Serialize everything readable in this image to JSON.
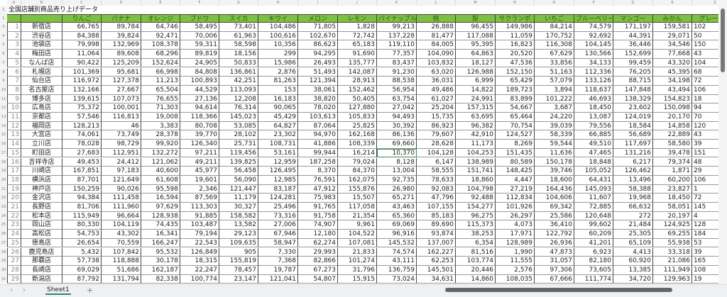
{
  "title": "全国店舗別商品売り上げデータ",
  "column_letters": [
    "A",
    "B",
    "C",
    "D",
    "E",
    "F",
    "G",
    "H",
    "I",
    "J",
    "K",
    "L",
    "M",
    "N",
    "O",
    "P",
    "Q",
    "R",
    "S"
  ],
  "headers": [
    "",
    "",
    "りんご",
    "バナナ",
    "オレンジ",
    "ブドウ",
    "スイカ",
    "キウイ",
    "メロン",
    "レモン",
    "パイナップル",
    "桃",
    "梨",
    "サクランボ",
    "いちご",
    "ブルーベリー",
    "マンゴー",
    "みかん",
    "グレープフ"
  ],
  "rows": [
    [
      "1",
      "新宿店",
      "66,765",
      "89,784",
      "64,746",
      "58,495",
      "73,401",
      "104,486",
      "71,805",
      "1,828",
      "99,213",
      "26,888",
      "96,455",
      "149,986",
      "84,214",
      "74,579",
      "171,197",
      "159,581",
      "102"
    ],
    [
      "2",
      "渋谷店",
      "84,388",
      "39,824",
      "92,471",
      "70,006",
      "61,963",
      "100,616",
      "102,670",
      "72,742",
      "137,228",
      "81,477",
      "117,088",
      "11,059",
      "170,752",
      "92,692",
      "44,391",
      "29,071",
      "50"
    ],
    [
      "3",
      "池袋店",
      "79,998",
      "132,969",
      "108,378",
      "59,311",
      "58,598",
      "10,356",
      "86,623",
      "65,183",
      "119,110",
      "84,005",
      "95,395",
      "16,823",
      "116,308",
      "104,145",
      "36,446",
      "34,546",
      "150"
    ],
    [
      "4",
      "梅田店",
      "11,064",
      "89,608",
      "68,296",
      "89,819",
      "18,156",
      "299",
      "94,295",
      "91,690",
      "77,357",
      "104,090",
      "64,863",
      "20,520",
      "67,629",
      "130,566",
      "152,699",
      "77,668",
      "43"
    ],
    [
      "5",
      "なんば店",
      "90,422",
      "125,209",
      "152,624",
      "24,905",
      "50,833",
      "15,986",
      "26,493",
      "135,777",
      "83,437",
      "103,832",
      "18,127",
      "47,536",
      "33,856",
      "34,133",
      "99,459",
      "43,320",
      "104"
    ],
    [
      "6",
      "札幌店",
      "101,369",
      "95,681",
      "66,998",
      "84,808",
      "136,861",
      "2,876",
      "51,493",
      "142,087",
      "91,230",
      "63,020",
      "126,988",
      "152,150",
      "51,163",
      "112,336",
      "76,205",
      "45,395",
      "68"
    ],
    [
      "7",
      "仙台店",
      "116,972",
      "127,378",
      "11,213",
      "100,893",
      "42,251",
      "81,263",
      "121,394",
      "28,913",
      "88,538",
      "36,031",
      "6,999",
      "65,429",
      "57,079",
      "133,126",
      "88,715",
      "34,198",
      "72"
    ],
    [
      "8",
      "名古屋店",
      "132,166",
      "27,667",
      "65,504",
      "44,529",
      "113,093",
      "153",
      "38,061",
      "152,462",
      "56,954",
      "49,486",
      "14,822",
      "189,723",
      "3,894",
      "118,637",
      "147,848",
      "43,494",
      "106"
    ],
    [
      "9",
      "博多店",
      "139,615",
      "107,073",
      "76,655",
      "27,136",
      "12,208",
      "16,183",
      "38,820",
      "50,405",
      "63,754",
      "61,027",
      "24,991",
      "83,899",
      "101,222",
      "46,693",
      "138,329",
      "154,823",
      "18"
    ],
    [
      "10",
      "広島店",
      "75,372",
      "100,001",
      "71,303",
      "94,614",
      "76,314",
      "90,065",
      "78,020",
      "127,880",
      "27,042",
      "25,204",
      "157,315",
      "54,667",
      "3,687",
      "18,450",
      "23,602",
      "150,098",
      "94"
    ],
    [
      "11",
      "京都店",
      "57,546",
      "116,813",
      "19,008",
      "118,366",
      "145,023",
      "45,429",
      "103,613",
      "105,833",
      "94,493",
      "15,735",
      "63,695",
      "65,464",
      "24,220",
      "13,087",
      "124,019",
      "20,170",
      "70"
    ],
    [
      "12",
      "福岡店",
      "128,213",
      "46",
      "3,383",
      "80,708",
      "53,085",
      "64,827",
      "87,064",
      "25,825",
      "30,392",
      "86,923",
      "96,382",
      "70,754",
      "39,039",
      "79,556",
      "18,584",
      "14,858",
      "120"
    ],
    [
      "13",
      "大宮店",
      "74,061",
      "73,749",
      "28,378",
      "39,770",
      "28,102",
      "23,302",
      "94,970",
      "162,168",
      "86,136",
      "79,607",
      "42,910",
      "124,527",
      "58,339",
      "66,885",
      "56,689",
      "22,889",
      "43"
    ],
    [
      "14",
      "立川店",
      "78,028",
      "98,729",
      "99,920",
      "126,340",
      "25,731",
      "108,731",
      "41,886",
      "108,339",
      "69,660",
      "28,628",
      "11,173",
      "8,269",
      "59,544",
      "49,510",
      "117,697",
      "58,580",
      "39"
    ],
    [
      "15",
      "町田店",
      "27,683",
      "112,951",
      "132,272",
      "97,211",
      "119,456",
      "53,161",
      "99,944",
      "16,214",
      "10,370",
      "104,128",
      "104,253",
      "151,435",
      "11,636",
      "47,465",
      "131,216",
      "39,478",
      "151"
    ],
    [
      "16",
      "吉祥寺店",
      "49,453",
      "24,412",
      "121,062",
      "49,211",
      "139,825",
      "12,959",
      "187,258",
      "79,024",
      "8,128",
      "6,147",
      "138,989",
      "80,589",
      "150,178",
      "18,848",
      "6,217",
      "79,374",
      "48"
    ],
    [
      "17",
      "川崎店",
      "167,851",
      "97,183",
      "40,600",
      "45,977",
      "56,458",
      "126,495",
      "8,370",
      "84,370",
      "13,004",
      "58,555",
      "151,741",
      "148,425",
      "39,746",
      "105,052",
      "126,462",
      "1,871",
      "29"
    ],
    [
      "18",
      "横浜店",
      "87,701",
      "121,649",
      "61,608",
      "19,601",
      "56,090",
      "12,985",
      "76,591",
      "162,075",
      "92,735",
      "78,633",
      "18,860",
      "4,447",
      "18,600",
      "64,431",
      "13,496",
      "60,200",
      "106"
    ],
    [
      "19",
      "神戸店",
      "150,259",
      "90,026",
      "95,598",
      "2,346",
      "121,447",
      "83,187",
      "47,912",
      "155,876",
      "26,980",
      "92,083",
      "104,798",
      "27,219",
      "164,436",
      "145,093",
      "58,388",
      "23,827",
      "1"
    ],
    [
      "20",
      "金沢店",
      "94,384",
      "111,458",
      "16,594",
      "87,569",
      "11,179",
      "124,281",
      "75,983",
      "15,507",
      "65,271",
      "47,796",
      "92,488",
      "112,834",
      "104,606",
      "11,607",
      "19,968",
      "18,450",
      "72"
    ],
    [
      "21",
      "長野店",
      "81,706",
      "111,960",
      "97,629",
      "113,303",
      "30,327",
      "25,496",
      "91,765",
      "117,058",
      "43,463",
      "107,155",
      "154,277",
      "101,926",
      "69,342",
      "72,885",
      "66,632",
      "58,051",
      "145"
    ],
    [
      "22",
      "松本店",
      "115,949",
      "96,664",
      "128,938",
      "91,885",
      "158,582",
      "73,316",
      "91,758",
      "21,354",
      "65,360",
      "85,183",
      "96,275",
      "26,297",
      "25,586",
      "120,648",
      "272",
      "20,197",
      "4"
    ],
    [
      "23",
      "岡山店",
      "80,330",
      "104,119",
      "74,435",
      "103,487",
      "13,582",
      "27,006",
      "74,907",
      "9,961",
      "69,069",
      "89,690",
      "115,373",
      "4,073",
      "36,410",
      "99,602",
      "21,484",
      "124,925",
      "128"
    ],
    [
      "24",
      "高松店",
      "54,753",
      "43,302",
      "16,341",
      "79,194",
      "29,123",
      "67,946",
      "12,180",
      "104,522",
      "96,916",
      "93,874",
      "38,253",
      "17,971",
      "122,792",
      "60,209",
      "25,305",
      "69,255",
      "184"
    ],
    [
      "25",
      "徳島店",
      "26,654",
      "70,559",
      "166,247",
      "22,543",
      "109,635",
      "58,947",
      "62,274",
      "107,081",
      "145,532",
      "137,007",
      "6,354",
      "128,989",
      "26,936",
      "41,201",
      "65,109",
      "55,938",
      "53"
    ],
    [
      "26",
      "鹿児島店",
      "5,432",
      "107,842",
      "95,532",
      "126,849",
      "905",
      "7,330",
      "29,993",
      "21,833",
      "74,574",
      "162,227",
      "81,516",
      "1,990",
      "47,873",
      "6,923",
      "4,413",
      "33,318",
      "39"
    ],
    [
      "27",
      "那覇店",
      "57,738",
      "118,888",
      "30,178",
      "18,315",
      "155,819",
      "7,368",
      "82,866",
      "101,274",
      "43,111",
      "62,253",
      "103,774",
      "11,555",
      "31,057",
      "82,180",
      "60,920",
      "21,086",
      "165"
    ],
    [
      "28",
      "長崎店",
      "69,029",
      "51,686",
      "162,187",
      "22,247",
      "78,457",
      "19,787",
      "67,273",
      "31,796",
      "136,759",
      "145,501",
      "20,446",
      "2,576",
      "97,306",
      "73,605",
      "13,385",
      "111,949",
      "108"
    ],
    [
      "29",
      "新潟店",
      "87,792",
      "131,794",
      "82,338",
      "100,774",
      "23,147",
      "121,041",
      "54,807",
      "15,915",
      "73,024",
      "34,631",
      "14,860",
      "108,035",
      "67,666",
      "111,774",
      "34,720",
      "129,963",
      "19"
    ]
  ],
  "selected_cell": {
    "row": 15,
    "column": "K"
  },
  "sheet_tabs": [
    "Sheet1"
  ],
  "add_sheet_label": "+",
  "nav_prev": "‹",
  "nav_next": "›",
  "colors": {
    "header_fill": "#7cc142",
    "header_text": "#2f5d12",
    "selection": "#2e8b57"
  }
}
